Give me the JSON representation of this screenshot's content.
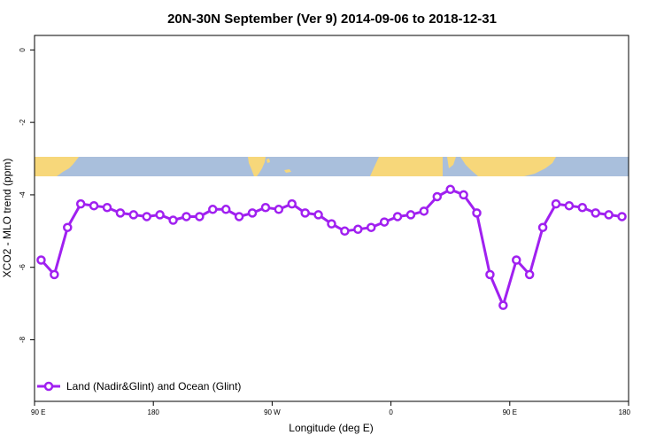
{
  "chart_data": {
    "type": "line",
    "title": "20N-30N September (Ver 9)   2014-09-06 to 2018-12-31",
    "xlabel": "Longitude (deg E)",
    "ylabel": "XCO2 - MLO trend (ppm)",
    "xlim": [
      90,
      540
    ],
    "ylim": [
      -9.7,
      0.4
    ],
    "x_ticks": [
      {
        "value": 90,
        "label": "90 E"
      },
      {
        "value": 180,
        "label": "180"
      },
      {
        "value": 270,
        "label": "90 W"
      },
      {
        "value": 360,
        "label": "0"
      },
      {
        "value": 450,
        "label": "90 E"
      },
      {
        "value": 540,
        "label": "180"
      }
    ],
    "y_ticks": [
      {
        "value": 0,
        "label": "0"
      },
      {
        "value": -2,
        "label": "-2"
      },
      {
        "value": -4,
        "label": "-4"
      },
      {
        "value": -6,
        "label": "-6"
      },
      {
        "value": -8,
        "label": "-8"
      }
    ],
    "map_band": {
      "ocean_color": "#a9bfdc",
      "land_color": "#f7d77a"
    },
    "series": [
      {
        "name": "Land (Nadir&Glint) and Ocean (Glint)",
        "color": "#a020f0",
        "x": [
          95,
          105,
          115,
          125,
          135,
          145,
          155,
          165,
          175,
          185,
          195,
          205,
          215,
          225,
          235,
          245,
          255,
          265,
          275,
          285,
          295,
          305,
          315,
          325,
          335,
          345,
          355,
          365,
          375,
          385,
          395,
          405,
          415,
          425,
          435,
          445,
          455,
          465,
          475,
          485,
          495,
          505,
          515,
          525,
          535
        ],
        "y": [
          -5.8,
          -6.2,
          -4.9,
          -4.25,
          -4.3,
          -4.35,
          -4.5,
          -4.55,
          -4.6,
          -4.55,
          -4.7,
          -4.6,
          -4.6,
          -4.4,
          -4.4,
          -4.6,
          -4.5,
          -4.35,
          -4.4,
          -4.25,
          -4.5,
          -4.55,
          -4.8,
          -5.0,
          -4.95,
          -4.9,
          -4.75,
          -4.6,
          -4.55,
          -4.45,
          -4.05,
          -3.85,
          -4.0,
          -4.5,
          -6.2,
          -7.05,
          -5.8,
          -6.2,
          -4.9,
          -4.25,
          -4.3,
          -4.35,
          -4.5,
          -4.55,
          -4.6
        ]
      }
    ],
    "legend": "bottom-left"
  }
}
